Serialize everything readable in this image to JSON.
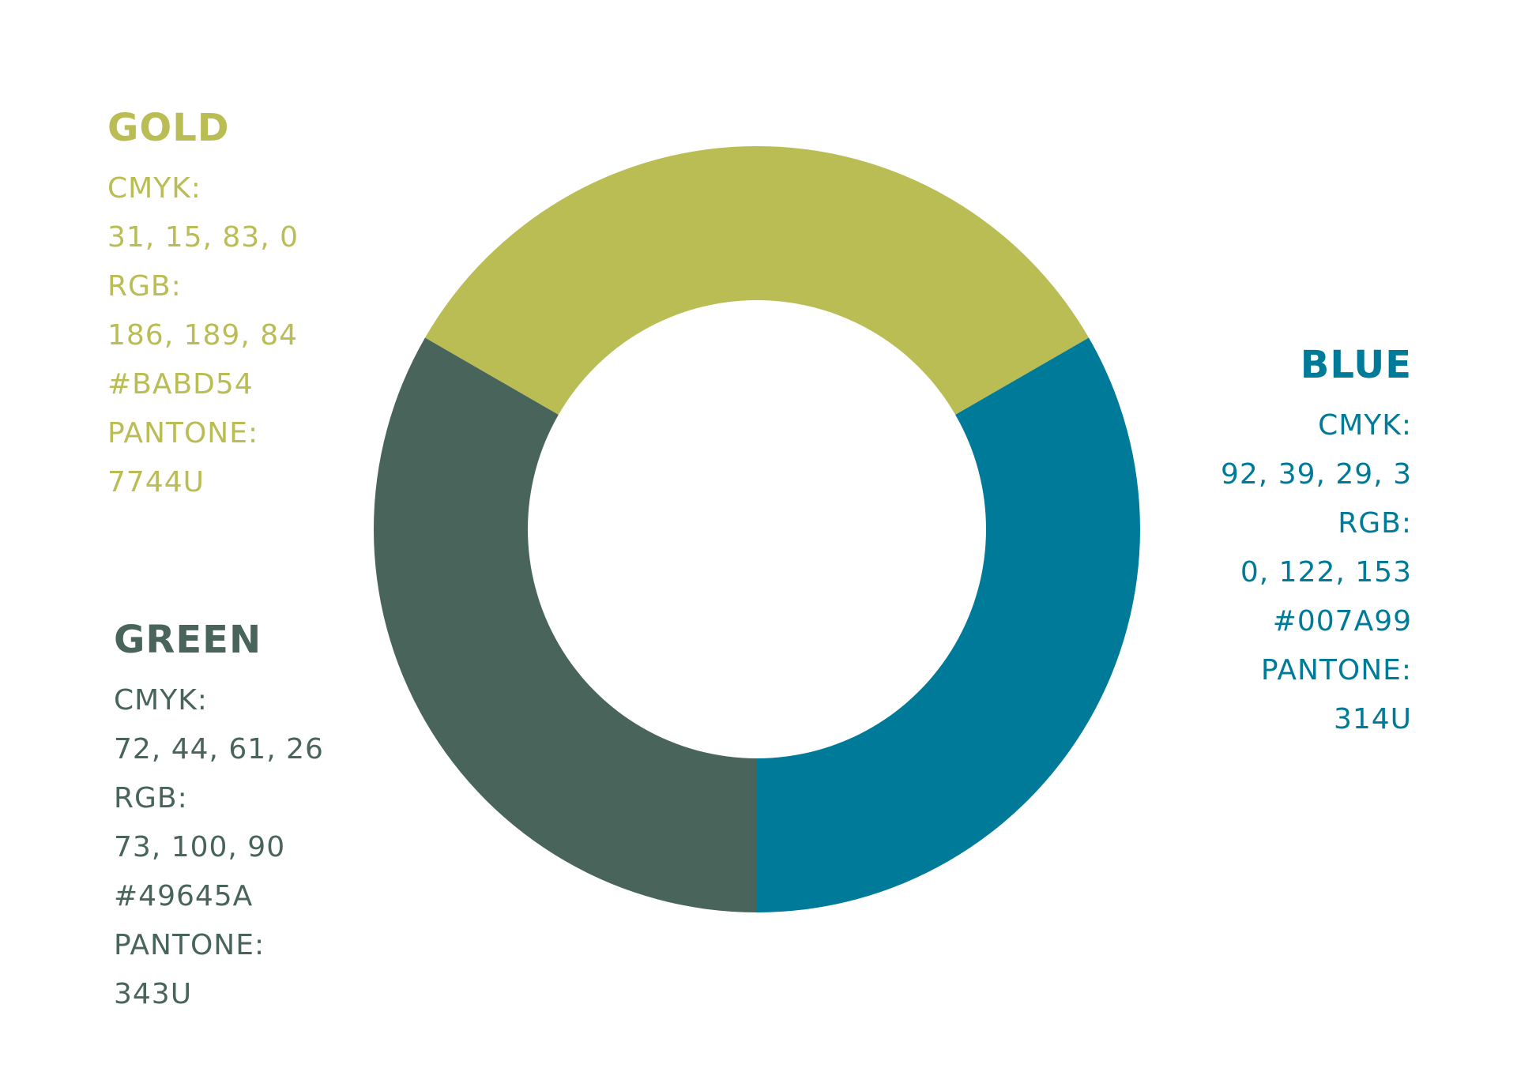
{
  "chart_data": {
    "type": "pie",
    "variant": "donut",
    "title": "",
    "categories": [
      "GOLD",
      "BLUE",
      "GREEN"
    ],
    "values": [
      33.3,
      33.3,
      33.3
    ],
    "colors": [
      "#BABD54",
      "#007A99",
      "#49645A"
    ],
    "legend": "none"
  },
  "swatches": {
    "gold": {
      "name": "GOLD",
      "cmyk_label": "CMYK:",
      "cmyk": "31, 15, 83, 0",
      "rgb_label": "RGB:",
      "rgb": "186, 189, 84",
      "hex": "#BABD54",
      "pantone_label": "PANTONE:",
      "pantone": "7744U",
      "color": "#BABD54"
    },
    "blue": {
      "name": "BLUE",
      "cmyk_label": "CMYK:",
      "cmyk": "92, 39, 29, 3",
      "rgb_label": "RGB:",
      "rgb": "0, 122, 153",
      "hex": "#007A99",
      "pantone_label": "PANTONE:",
      "pantone": "314U",
      "color": "#007A99"
    },
    "green": {
      "name": "GREEN",
      "cmyk_label": "CMYK:",
      "cmyk": "72, 44, 61, 26",
      "rgb_label": "RGB:",
      "rgb": "73, 100, 90",
      "hex": "#49645A",
      "pantone_label": "PANTONE:",
      "pantone": "343U",
      "color": "#49645A"
    }
  }
}
